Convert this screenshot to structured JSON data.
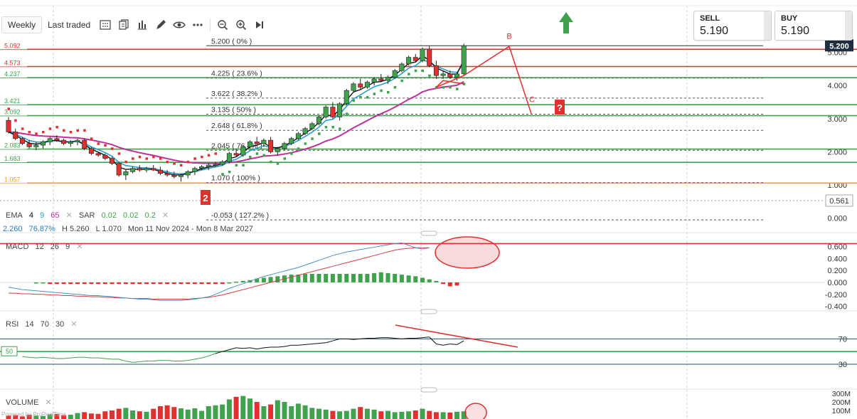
{
  "toolbar": {
    "tabs": [
      "Weekly",
      "Last traded"
    ],
    "icons": [
      "grid-icon",
      "compare-icon",
      "bar-chart-icon",
      "draw-pencil-icon",
      "eye-icon",
      "more-icon",
      "zoom-out-icon",
      "zoom-in-icon",
      "skip-end-icon"
    ]
  },
  "quotes": {
    "sell": {
      "label": "SELL",
      "value": "5.190"
    },
    "buy": {
      "label": "BUY",
      "value": "5.190"
    }
  },
  "price_panel": {
    "last_price": "5.200",
    "marker_price": "0.561",
    "legend": {
      "ema_label": "EMA",
      "ema_params": [
        "4",
        "9",
        "65"
      ],
      "sar_label": "SAR",
      "sar_params": [
        "0.02",
        "0.02",
        "0.2"
      ],
      "info_value": "2.260",
      "info_pct": "76.87%",
      "high": "H 5.260",
      "low": "L 1.070",
      "range": "Mon 11 Nov 2024 - Mon 8 Mar 2027"
    },
    "left_level_labels": [
      "5.092",
      "4.573",
      "4.237",
      "3.421",
      "3.092",
      "2.083",
      "1.683",
      "1.057"
    ],
    "fib_labels": [
      "5.200 ( 0% )",
      "4.225 ( 23.6% )",
      "3.622 ( 38.2% )",
      "3.135 ( 50% )",
      "2.648 ( 61.8% )",
      "2.045 ( 76.4% )",
      "1.070 ( 100% )",
      "-0.053 ( 127.2% )"
    ],
    "annotations": {
      "b": "B",
      "c": "C",
      "question": "?",
      "two": "2"
    }
  },
  "macd_panel": {
    "label": "MACD",
    "params": [
      "12",
      "26",
      "9"
    ]
  },
  "rsi_panel": {
    "label": "RSI",
    "params": [
      "14",
      "70",
      "30"
    ],
    "mid_label": "50"
  },
  "volume_panel": {
    "label": "VOLUME",
    "watermark": "Powered by ProRealTime"
  },
  "colors": {
    "up": "#3fa34d",
    "down": "#e03030",
    "ema_fast": "#111111",
    "ema_mid": "#2a9fd0",
    "ema_slow": "#c0309a",
    "resistance": "#e03030",
    "support": "#3fa34d",
    "fib": "#555555",
    "annotation": "#e03030",
    "arrow": "#3fa34d"
  },
  "chart_data": [
    {
      "type": "candlestick",
      "title": "",
      "y_ticks": [
        "0.000",
        "1.000",
        "2.000",
        "3.000",
        "4.000",
        "5.000"
      ],
      "ylim": [
        -0.2,
        5.7
      ],
      "candles": [
        [
          2.95,
          3.05,
          2.55,
          2.6
        ],
        [
          2.6,
          2.7,
          2.35,
          2.4
        ],
        [
          2.4,
          2.45,
          2.2,
          2.25
        ],
        [
          2.25,
          2.35,
          2.1,
          2.15
        ],
        [
          2.15,
          2.3,
          2.05,
          2.2
        ],
        [
          2.2,
          2.35,
          2.1,
          2.3
        ],
        [
          2.3,
          2.45,
          2.2,
          2.4
        ],
        [
          2.4,
          2.5,
          2.3,
          2.35
        ],
        [
          2.35,
          2.4,
          2.2,
          2.25
        ],
        [
          2.25,
          2.35,
          2.15,
          2.3
        ],
        [
          2.3,
          2.4,
          2.2,
          2.35
        ],
        [
          2.35,
          2.4,
          2.05,
          2.1
        ],
        [
          2.1,
          2.15,
          1.9,
          1.95
        ],
        [
          1.95,
          2.0,
          1.85,
          1.9
        ],
        [
          1.9,
          1.95,
          1.75,
          1.8
        ],
        [
          1.8,
          1.85,
          1.6,
          1.65
        ],
        [
          1.65,
          1.7,
          1.25,
          1.3
        ],
        [
          1.3,
          1.45,
          1.15,
          1.4
        ],
        [
          1.4,
          1.55,
          1.35,
          1.5
        ],
        [
          1.5,
          1.6,
          1.4,
          1.45
        ],
        [
          1.45,
          1.55,
          1.38,
          1.5
        ],
        [
          1.5,
          1.6,
          1.42,
          1.45
        ],
        [
          1.45,
          1.55,
          1.3,
          1.35
        ],
        [
          1.35,
          1.45,
          1.25,
          1.3
        ],
        [
          1.3,
          1.4,
          1.2,
          1.25
        ],
        [
          1.25,
          1.35,
          1.1,
          1.3
        ],
        [
          1.3,
          1.45,
          1.2,
          1.4
        ],
        [
          1.4,
          1.55,
          1.3,
          1.5
        ],
        [
          1.5,
          1.6,
          1.45,
          1.55
        ],
        [
          1.55,
          1.65,
          1.45,
          1.6
        ],
        [
          1.6,
          1.7,
          1.55,
          1.62
        ],
        [
          1.62,
          1.75,
          1.58,
          1.7
        ],
        [
          1.7,
          2.0,
          1.65,
          1.95
        ],
        [
          1.95,
          2.1,
          1.85,
          1.9
        ],
        [
          1.9,
          2.2,
          1.85,
          2.15
        ],
        [
          2.15,
          2.35,
          2.1,
          2.3
        ],
        [
          2.3,
          2.45,
          2.2,
          2.25
        ],
        [
          2.25,
          2.4,
          2.15,
          2.35
        ],
        [
          2.35,
          2.45,
          1.95,
          2.0
        ],
        [
          2.0,
          2.15,
          1.9,
          2.1
        ],
        [
          2.1,
          2.3,
          2.05,
          2.25
        ],
        [
          2.25,
          2.45,
          2.2,
          2.4
        ],
        [
          2.4,
          2.6,
          2.35,
          2.55
        ],
        [
          2.55,
          2.75,
          2.5,
          2.7
        ],
        [
          2.7,
          2.9,
          2.65,
          2.85
        ],
        [
          2.85,
          3.1,
          2.8,
          3.05
        ],
        [
          3.05,
          3.4,
          3.0,
          3.35
        ],
        [
          3.35,
          3.5,
          3.0,
          3.05
        ],
        [
          3.05,
          3.5,
          2.95,
          3.45
        ],
        [
          3.45,
          3.9,
          3.4,
          3.85
        ],
        [
          3.85,
          4.1,
          3.8,
          4.05
        ],
        [
          4.05,
          4.2,
          3.9,
          3.95
        ],
        [
          3.95,
          4.15,
          3.9,
          4.1
        ],
        [
          4.1,
          4.25,
          4.0,
          4.2
        ],
        [
          4.2,
          4.35,
          4.1,
          4.15
        ],
        [
          4.15,
          4.3,
          4.05,
          4.25
        ],
        [
          4.25,
          4.5,
          4.2,
          4.45
        ],
        [
          4.45,
          4.7,
          4.4,
          4.65
        ],
        [
          4.65,
          4.9,
          4.6,
          4.85
        ],
        [
          4.85,
          4.95,
          4.7,
          4.75
        ],
        [
          4.75,
          5.15,
          4.7,
          5.1
        ],
        [
          5.1,
          5.2,
          4.55,
          4.6
        ],
        [
          4.6,
          4.75,
          4.2,
          4.3
        ],
        [
          4.3,
          4.45,
          4.2,
          4.35
        ],
        [
          4.35,
          4.45,
          4.2,
          4.25
        ],
        [
          4.25,
          4.4,
          4.15,
          4.35
        ],
        [
          4.35,
          5.26,
          4.3,
          5.2
        ]
      ],
      "horizontal_levels": [
        5.092,
        4.573,
        4.237,
        3.421,
        3.092,
        2.083,
        1.683,
        1.057
      ],
      "fibonacci_levels": [
        5.2,
        4.225,
        3.622,
        3.135,
        2.648,
        2.045,
        1.07,
        -0.053
      ]
    },
    {
      "type": "line",
      "title": "",
      "y_ticks": [
        "0.600",
        "0.400",
        "0.200",
        "0.000",
        "-0.200",
        "-0.400"
      ],
      "ylim": [
        -0.45,
        0.75
      ],
      "series": [
        {
          "values": [
            -0.08,
            -0.1,
            -0.12,
            -0.13,
            -0.14,
            -0.15,
            -0.16,
            -0.17,
            -0.18,
            -0.19,
            -0.2,
            -0.21,
            -0.22,
            -0.22,
            -0.23,
            -0.24,
            -0.25,
            -0.26,
            -0.27,
            -0.28,
            -0.28,
            -0.29,
            -0.3,
            -0.3,
            -0.3,
            -0.3,
            -0.29,
            -0.28,
            -0.26,
            -0.24,
            -0.2,
            -0.15,
            -0.1,
            -0.06,
            -0.02,
            0.02,
            0.06,
            0.1,
            0.13,
            0.16,
            0.19,
            0.22,
            0.25,
            0.29,
            0.33,
            0.37,
            0.41,
            0.45,
            0.48,
            0.51,
            0.53,
            0.55,
            0.57,
            0.59,
            0.61,
            0.63,
            0.65,
            0.66,
            0.62,
            0.58,
            0.56,
            0.58
          ]
        },
        {
          "values": [
            -0.18,
            -0.18,
            -0.19,
            -0.19,
            -0.2,
            -0.2,
            -0.21,
            -0.21,
            -0.22,
            -0.22,
            -0.23,
            -0.23,
            -0.24,
            -0.24,
            -0.25,
            -0.25,
            -0.26,
            -0.26,
            -0.27,
            -0.27,
            -0.27,
            -0.28,
            -0.28,
            -0.28,
            -0.28,
            -0.28,
            -0.28,
            -0.27,
            -0.26,
            -0.25,
            -0.23,
            -0.21,
            -0.18,
            -0.15,
            -0.12,
            -0.09,
            -0.06,
            -0.03,
            0.0,
            0.03,
            0.06,
            0.09,
            0.12,
            0.15,
            0.18,
            0.21,
            0.24,
            0.27,
            0.3,
            0.33,
            0.36,
            0.39,
            0.42,
            0.45,
            0.48,
            0.51,
            0.54,
            0.56,
            0.57,
            0.58,
            0.58,
            0.58
          ]
        }
      ],
      "histogram": [
        0,
        0,
        -0.02,
        -0.02,
        -0.02,
        -0.02,
        -0.02,
        -0.02,
        -0.02,
        -0.02,
        -0.02,
        -0.02,
        -0.02,
        -0.02,
        -0.02,
        -0.02,
        -0.02,
        -0.02,
        -0.02,
        -0.02,
        -0.02,
        -0.02,
        -0.02,
        -0.02,
        -0.02,
        -0.02,
        -0.02,
        -0.02,
        0.0,
        0.01,
        0.02,
        0.03,
        0.05,
        0.06,
        0.07,
        0.08,
        0.09,
        0.1,
        0.1,
        0.11,
        0.11,
        0.11,
        0.11,
        0.11,
        0.11,
        0.11,
        0.11,
        0.11,
        0.11,
        0.12,
        0.13,
        0.12,
        0.11,
        0.1,
        0.09,
        0.08,
        0.06,
        0.04,
        0.02,
        -0.02,
        -0.05,
        -0.04
      ],
      "resistance_level": 0.65
    },
    {
      "type": "line",
      "title": "",
      "y_ticks": [
        "70",
        "30"
      ],
      "ylim": [
        20,
        85
      ],
      "series": [
        {
          "values": [
            42,
            41,
            40,
            41,
            40,
            39,
            39,
            40,
            41,
            41,
            40,
            40,
            39,
            38,
            38,
            35,
            33,
            34,
            35,
            35,
            36,
            36,
            35,
            35,
            36,
            38,
            40,
            43,
            47,
            50,
            53,
            56,
            55,
            56,
            54,
            56,
            57,
            57,
            58,
            60,
            60,
            61,
            62,
            63,
            64,
            67,
            70,
            70,
            69,
            70,
            71,
            71,
            72,
            72,
            71,
            70,
            71,
            71,
            72,
            73,
            62,
            60,
            62,
            61,
            67
          ]
        }
      ],
      "levels": [
        70,
        50,
        30
      ],
      "trendline": [
        [
          73,
          78
        ],
        [
          73,
          64
        ]
      ]
    },
    {
      "type": "bar",
      "title": "",
      "y_ticks": [
        "300M",
        "200M",
        "100M"
      ],
      "ylim": [
        0,
        350
      ],
      "values": [
        40,
        45,
        30,
        50,
        40,
        35,
        55,
        60,
        45,
        50,
        70,
        80,
        65,
        60,
        90,
        100,
        120,
        130,
        100,
        90,
        85,
        120,
        150,
        160,
        140,
        125,
        110,
        125,
        95,
        150,
        160,
        170,
        230,
        260,
        270,
        240,
        200,
        150,
        170,
        220,
        200,
        150,
        180,
        160,
        130,
        120,
        110,
        95,
        90,
        95,
        120,
        140,
        120,
        110,
        90,
        95,
        80,
        85,
        90,
        100,
        120,
        95,
        80,
        80,
        75,
        85,
        90
      ]
    }
  ]
}
